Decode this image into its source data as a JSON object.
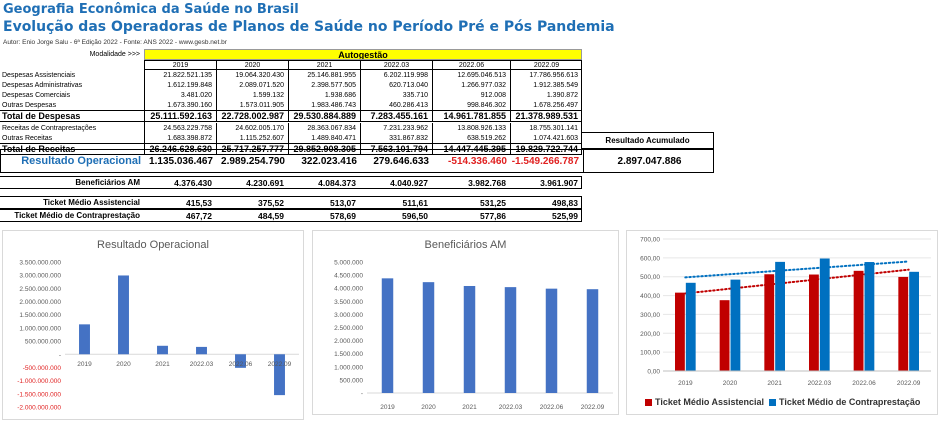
{
  "header": {
    "title": "Geografia Econômica da Saúde no Brasil",
    "subtitle": "Evolução das Operadoras de Planos de Saúde no Período Pré e Pós Pandemia",
    "author": "Autor: Enio Jorge Salu - 6ª Edição 2022 - Fonte: ANS 2022 - www.gesb.net.br"
  },
  "table": {
    "modalidade_label": "Modalidade >>>",
    "modalidade_value": "Autogestão",
    "periods": [
      "2019",
      "2020",
      "2021",
      "2022.03",
      "2022.06",
      "2022.09"
    ],
    "rows": [
      {
        "label": "Despesas Assistenciais",
        "values": [
          "21.822.521.135",
          "19.064.320.430",
          "25.146.881.955",
          "6.202.119.998",
          "12.695.046.513",
          "17.786.956.613"
        ]
      },
      {
        "label": "Despesas Administrativas",
        "values": [
          "1.612.199.848",
          "2.089.071.520",
          "2.398.577.505",
          "620.713.040",
          "1.266.977.032",
          "1.912.385.549"
        ]
      },
      {
        "label": "Despesas Comerciais",
        "values": [
          "3.481.020",
          "1.599.132",
          "1.938.686",
          "335.710",
          "912.008",
          "1.390.872"
        ]
      },
      {
        "label": "Outras Despesas",
        "values": [
          "1.673.390.160",
          "1.573.011.905",
          "1.983.486.743",
          "460.286.413",
          "998.846.302",
          "1.678.256.497"
        ]
      },
      {
        "label": "Total de Despesas",
        "values": [
          "25.111.592.163",
          "22.728.002.987",
          "29.530.884.889",
          "7.283.455.161",
          "14.961.781.855",
          "21.378.989.531"
        ],
        "bold": true
      },
      {
        "label": "Receitas de Contraprestações",
        "values": [
          "24.563.229.758",
          "24.602.005.170",
          "28.363.067.834",
          "7.231.233.962",
          "13.808.926.133",
          "18.755.301.141"
        ]
      },
      {
        "label": "Outras Receitas",
        "values": [
          "1.683.398.872",
          "1.115.252.607",
          "1.489.840.471",
          "331.867.832",
          "638.519.262",
          "1.074.421.603"
        ]
      },
      {
        "label": "Total de Receitas",
        "values": [
          "26.246.628.630",
          "25.717.257.777",
          "29.852.908.305",
          "7.563.101.794",
          "14.447.445.395",
          "19.829.722.744"
        ],
        "bold": true
      }
    ],
    "resultado_acumulado_label": "Resultado Acumulado",
    "resultado_acumulado_value": "2.897.047.886",
    "resultado_operacional": {
      "label": "Resultado Operacional",
      "values": [
        "1.135.036.467",
        "2.989.254.790",
        "322.023.416",
        "279.646.633",
        "-514.336.460",
        "-1.549.266.787"
      ]
    },
    "beneficiarios": {
      "label": "Beneficiários AM",
      "values": [
        "4.376.430",
        "4.230.691",
        "4.084.373",
        "4.040.927",
        "3.982.768",
        "3.961.907"
      ]
    },
    "ticket_assistencial": {
      "label": "Ticket Médio Assistencial",
      "values": [
        "415,53",
        "375,52",
        "513,07",
        "511,61",
        "531,25",
        "498,83"
      ]
    },
    "ticket_contraprestacao": {
      "label": "Ticket Médio de Contraprestação",
      "values": [
        "467,72",
        "484,59",
        "578,69",
        "596,50",
        "577,86",
        "525,99"
      ]
    }
  },
  "colors": {
    "accent": "#1f6fb5",
    "highlight": "#ffff00",
    "bar_blue": "#4472c4",
    "ticket_red": "#c00000",
    "ticket_blue": "#0070c0",
    "negative": "#e02020"
  },
  "chart_data": [
    {
      "type": "bar",
      "title": "Resultado Operacional",
      "categories": [
        "2019",
        "2020",
        "2021",
        "2022.03",
        "2022.06",
        "2022.09"
      ],
      "values": [
        1135036467,
        2989254790,
        322023416,
        279646633,
        -514336460,
        -1549266787
      ],
      "ylim": [
        -2000000000,
        3500000000
      ],
      "yticks": [
        "3.500.000.000",
        "3.000.000.000",
        "2.500.000.000",
        "2.000.000.000",
        "1.500.000.000",
        "1.000.000.000",
        "500.000.000",
        "-",
        "-500.000.000",
        "-1.000.000.000",
        "-1.500.000.000",
        "-2.000.000.000"
      ],
      "grid": false
    },
    {
      "type": "bar",
      "title": "Beneficiários AM",
      "categories": [
        "2019",
        "2020",
        "2021",
        "2022.03",
        "2022.06",
        "2022.09"
      ],
      "values": [
        4376430,
        4230691,
        4084373,
        4040927,
        3982768,
        3961907
      ],
      "ylim": [
        0,
        5000000
      ],
      "yticks": [
        "5.000.000",
        "4.500.000",
        "4.000.000",
        "3.500.000",
        "3.000.000",
        "2.500.000",
        "2.000.000",
        "1.500.000",
        "1.000.000",
        "500.000",
        "-"
      ],
      "grid": false
    },
    {
      "type": "bar",
      "title": "",
      "categories": [
        "2019",
        "2020",
        "2021",
        "2022.03",
        "2022.06",
        "2022.09"
      ],
      "series": [
        {
          "name": "Ticket Médio Assistencial",
          "values": [
            415.53,
            375.52,
            513.07,
            511.61,
            531.25,
            498.83
          ]
        },
        {
          "name": "Ticket Médio de Contraprestação",
          "values": [
            467.72,
            484.59,
            578.69,
            596.5,
            577.86,
            525.99
          ]
        }
      ],
      "trendlines": true,
      "ylim": [
        0,
        700
      ],
      "yticks": [
        "700,00",
        "600,00",
        "500,00",
        "400,00",
        "300,00",
        "200,00",
        "100,00",
        "0,00"
      ],
      "legend": "bottom",
      "grid": true
    }
  ]
}
